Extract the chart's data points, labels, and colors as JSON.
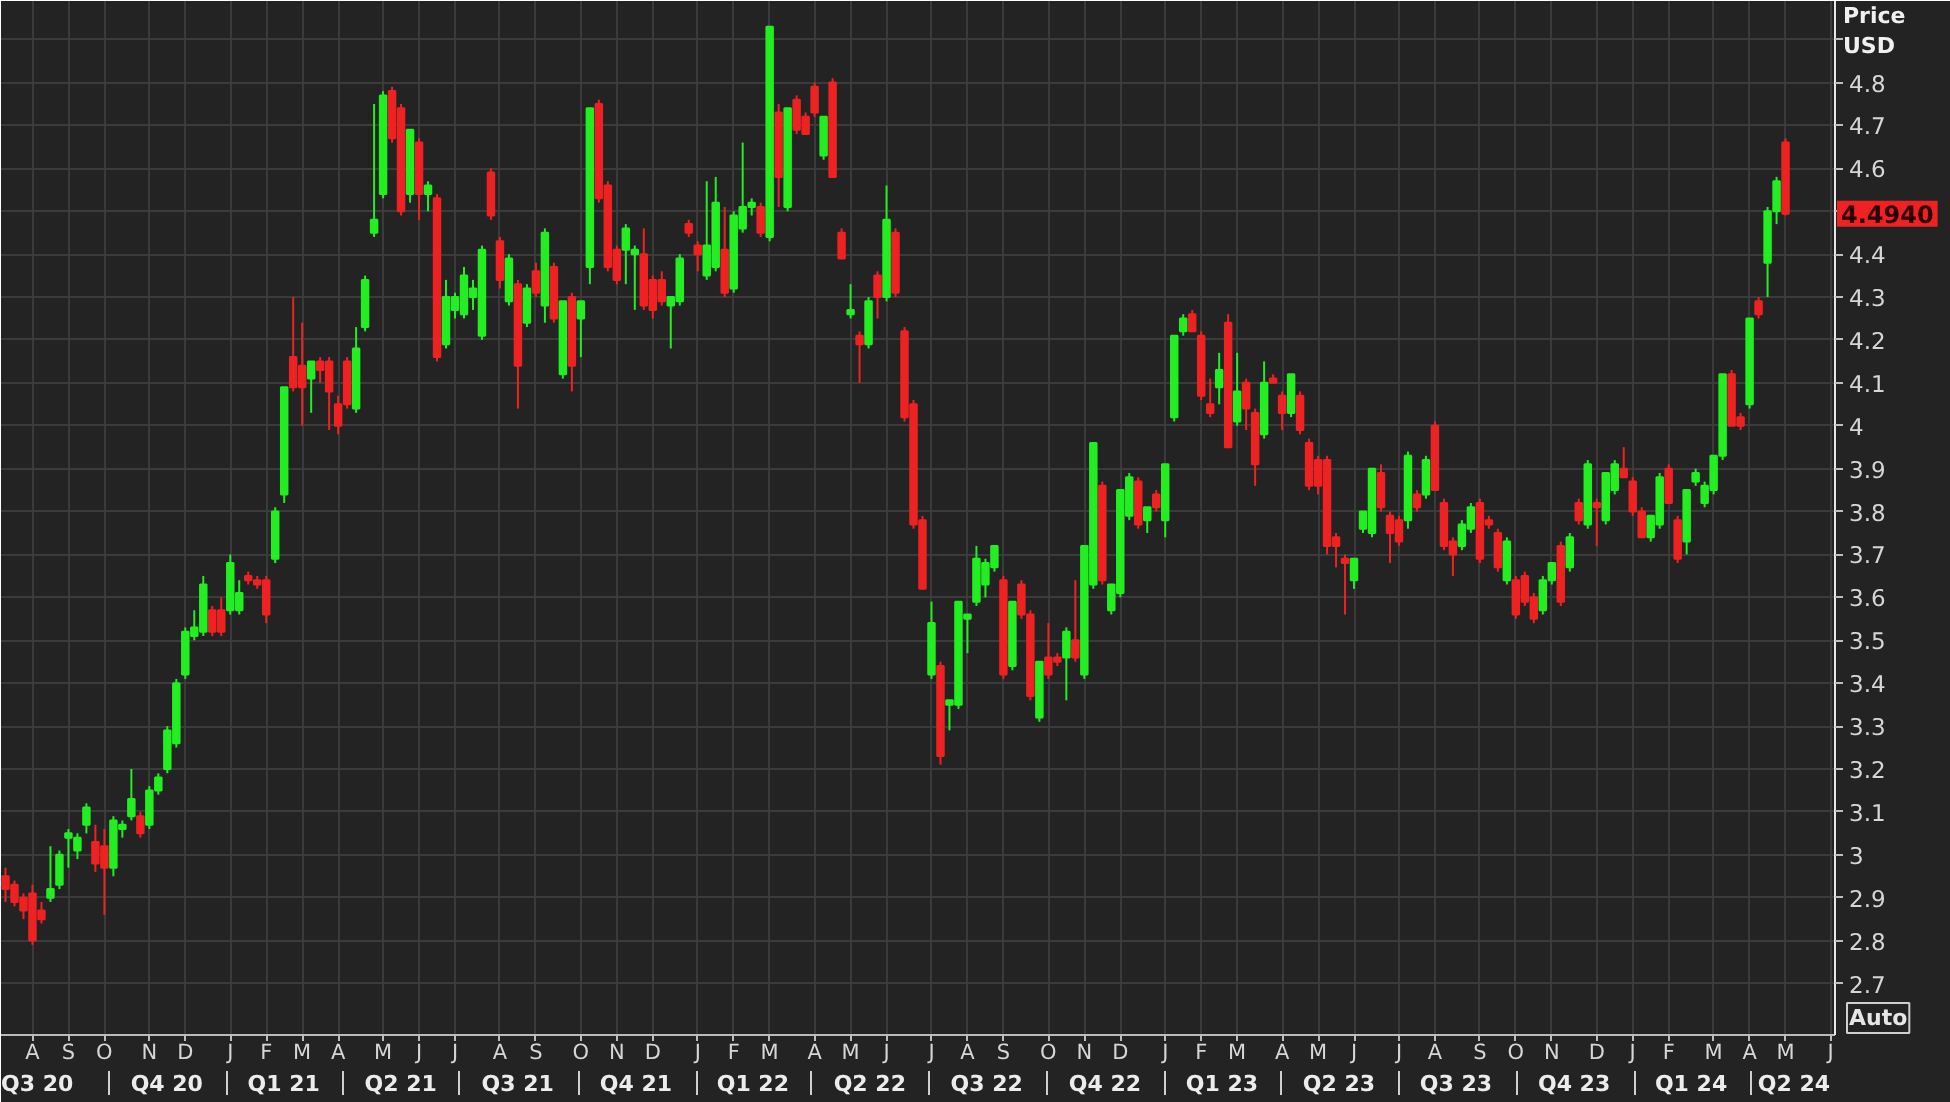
{
  "chart_data": {
    "type": "candlestick",
    "ylabel": "Price USD",
    "categories": [
      null,
      null,
      null,
      "A",
      null,
      null,
      null,
      "S",
      null,
      null,
      null,
      "O",
      null,
      null,
      null,
      null,
      "N",
      null,
      null,
      null,
      "D",
      null,
      null,
      null,
      null,
      "J",
      null,
      null,
      null,
      "F",
      null,
      null,
      null,
      "M",
      null,
      null,
      null,
      "A",
      null,
      null,
      null,
      null,
      "M",
      null,
      null,
      null,
      "J",
      null,
      null,
      null,
      "J",
      null,
      null,
      null,
      null,
      "A",
      null,
      null,
      null,
      "S",
      null,
      null,
      null,
      null,
      "O",
      null,
      null,
      null,
      "N",
      null,
      null,
      null,
      "D",
      null,
      null,
      null,
      null,
      "J",
      null,
      null,
      null,
      "F",
      null,
      null,
      null,
      "M",
      null,
      null,
      null,
      null,
      "A",
      null,
      null,
      null,
      "M",
      null,
      null,
      null,
      "J",
      null,
      null,
      null,
      null,
      "J",
      null,
      null,
      null,
      "A",
      null,
      null,
      null,
      "S",
      null,
      null,
      null,
      null,
      "O",
      null,
      null,
      null,
      "N",
      null,
      null,
      null,
      "D",
      null,
      null,
      null,
      null,
      "J",
      null,
      null,
      null,
      "F",
      null,
      null,
      null,
      "M",
      null,
      null,
      null,
      null,
      "A",
      null,
      null,
      null,
      "M",
      null,
      null,
      null,
      "J",
      null,
      null,
      null,
      null,
      "J",
      null,
      null,
      null,
      "A",
      null,
      null,
      null,
      null,
      "S",
      null,
      null,
      null,
      "O",
      null,
      null,
      null,
      "N",
      null,
      null,
      null,
      null,
      "D",
      null,
      null,
      null,
      "J",
      null,
      null,
      null,
      "F",
      null,
      null,
      null,
      null,
      "M",
      null,
      null,
      null,
      "A",
      null,
      null,
      null,
      "M",
      null,
      null,
      null,
      null,
      "J"
    ],
    "ohlc": [
      [
        2.95,
        2.97,
        2.89,
        2.92
      ],
      [
        2.93,
        2.94,
        2.88,
        2.89
      ],
      [
        2.9,
        2.91,
        2.85,
        2.87
      ],
      [
        2.91,
        2.93,
        2.79,
        2.8
      ],
      [
        2.87,
        2.89,
        2.84,
        2.85
      ],
      [
        2.9,
        3.02,
        2.89,
        2.92
      ],
      [
        2.93,
        3.01,
        2.92,
        3.0
      ],
      [
        3.04,
        3.06,
        2.97,
        3.05
      ],
      [
        3.01,
        3.05,
        2.99,
        3.04
      ],
      [
        3.07,
        3.12,
        3.05,
        3.11
      ],
      [
        3.03,
        3.07,
        2.96,
        2.98
      ],
      [
        3.02,
        3.06,
        2.86,
        2.97
      ],
      [
        2.97,
        3.09,
        2.95,
        3.08
      ],
      [
        3.06,
        3.08,
        3.04,
        3.07
      ],
      [
        3.09,
        3.2,
        3.08,
        3.13
      ],
      [
        3.09,
        3.1,
        3.04,
        3.05
      ],
      [
        3.07,
        3.16,
        3.06,
        3.15
      ],
      [
        3.15,
        3.19,
        3.14,
        3.18
      ],
      [
        3.2,
        3.3,
        3.19,
        3.29
      ],
      [
        3.26,
        3.41,
        3.25,
        3.4
      ],
      [
        3.42,
        3.53,
        3.41,
        3.52
      ],
      [
        3.51,
        3.57,
        3.5,
        3.53
      ],
      [
        3.52,
        3.65,
        3.51,
        3.63
      ],
      [
        3.57,
        3.58,
        3.51,
        3.52
      ],
      [
        3.57,
        3.6,
        3.51,
        3.52
      ],
      [
        3.57,
        3.7,
        3.56,
        3.68
      ],
      [
        3.57,
        3.64,
        3.56,
        3.61
      ],
      [
        3.65,
        3.66,
        3.63,
        3.64
      ],
      [
        3.64,
        3.65,
        3.62,
        3.63
      ],
      [
        3.64,
        3.65,
        3.54,
        3.56
      ],
      [
        3.69,
        3.81,
        3.68,
        3.8
      ],
      [
        3.84,
        4.09,
        3.82,
        4.09
      ],
      [
        4.16,
        4.3,
        4.08,
        4.09
      ],
      [
        4.14,
        4.24,
        4.0,
        4.09
      ],
      [
        4.11,
        4.15,
        4.03,
        4.15
      ],
      [
        4.15,
        4.16,
        4.1,
        4.13
      ],
      [
        4.15,
        4.16,
        3.99,
        4.08
      ],
      [
        4.05,
        4.07,
        3.98,
        4.0
      ],
      [
        4.15,
        4.16,
        4.04,
        4.05
      ],
      [
        4.04,
        4.23,
        4.03,
        4.18
      ],
      [
        4.23,
        4.35,
        4.22,
        4.34
      ],
      [
        4.45,
        4.75,
        4.44,
        4.48
      ],
      [
        4.54,
        4.78,
        4.53,
        4.77
      ],
      [
        4.78,
        4.79,
        4.66,
        4.67
      ],
      [
        4.74,
        4.75,
        4.49,
        4.5
      ],
      [
        4.54,
        4.69,
        4.52,
        4.69
      ],
      [
        4.66,
        4.67,
        4.48,
        4.54
      ],
      [
        4.54,
        4.57,
        4.5,
        4.56
      ],
      [
        4.53,
        4.54,
        4.15,
        4.16
      ],
      [
        4.19,
        4.34,
        4.18,
        4.3
      ],
      [
        4.27,
        4.31,
        4.25,
        4.3
      ],
      [
        4.26,
        4.37,
        4.25,
        4.35
      ],
      [
        4.3,
        4.34,
        4.27,
        4.32
      ],
      [
        4.21,
        4.42,
        4.2,
        4.41
      ],
      [
        4.59,
        4.6,
        4.48,
        4.49
      ],
      [
        4.43,
        4.44,
        4.32,
        4.34
      ],
      [
        4.29,
        4.4,
        4.28,
        4.39
      ],
      [
        4.33,
        4.34,
        4.04,
        4.14
      ],
      [
        4.24,
        4.33,
        4.23,
        4.32
      ],
      [
        4.36,
        4.38,
        4.3,
        4.31
      ],
      [
        4.28,
        4.46,
        4.24,
        4.45
      ],
      [
        4.37,
        4.38,
        4.24,
        4.25
      ],
      [
        4.12,
        4.29,
        4.11,
        4.29
      ],
      [
        4.3,
        4.31,
        4.08,
        4.14
      ],
      [
        4.25,
        4.29,
        4.16,
        4.29
      ],
      [
        4.37,
        4.74,
        4.33,
        4.74
      ],
      [
        4.75,
        4.76,
        4.52,
        4.53
      ],
      [
        4.56,
        4.57,
        4.36,
        4.37
      ],
      [
        4.41,
        4.42,
        4.33,
        4.34
      ],
      [
        4.41,
        4.47,
        4.33,
        4.46
      ],
      [
        4.4,
        4.42,
        4.27,
        4.41
      ],
      [
        4.4,
        4.46,
        4.27,
        4.28
      ],
      [
        4.34,
        4.35,
        4.25,
        4.27
      ],
      [
        4.34,
        4.36,
        4.28,
        4.29
      ],
      [
        4.28,
        4.3,
        4.18,
        4.3
      ],
      [
        4.29,
        4.4,
        4.28,
        4.39
      ],
      [
        4.47,
        4.48,
        4.44,
        4.45
      ],
      [
        4.42,
        4.43,
        4.36,
        4.4
      ],
      [
        4.35,
        4.57,
        4.34,
        4.42
      ],
      [
        4.37,
        4.58,
        4.36,
        4.52
      ],
      [
        4.41,
        4.51,
        4.3,
        4.31
      ],
      [
        4.32,
        4.5,
        4.31,
        4.49
      ],
      [
        4.46,
        4.66,
        4.45,
        4.51
      ],
      [
        4.51,
        4.53,
        4.49,
        4.52
      ],
      [
        4.51,
        4.52,
        4.44,
        4.45
      ],
      [
        4.44,
        4.93,
        4.43,
        4.93
      ],
      [
        4.73,
        4.75,
        4.51,
        4.58
      ],
      [
        4.51,
        4.74,
        4.5,
        4.74
      ],
      [
        4.76,
        4.77,
        4.68,
        4.69
      ],
      [
        4.72,
        4.73,
        4.68,
        4.68
      ],
      [
        4.79,
        4.8,
        4.72,
        4.73
      ],
      [
        4.63,
        4.72,
        4.62,
        4.72
      ],
      [
        4.8,
        4.81,
        4.58,
        4.58
      ],
      [
        4.45,
        4.46,
        4.39,
        4.39
      ],
      [
        4.26,
        4.33,
        4.25,
        4.27
      ],
      [
        4.21,
        4.22,
        4.1,
        4.19
      ],
      [
        4.19,
        4.3,
        4.18,
        4.29
      ],
      [
        4.35,
        4.36,
        4.25,
        4.3
      ],
      [
        4.3,
        4.56,
        4.29,
        4.48
      ],
      [
        4.45,
        4.46,
        4.3,
        4.31
      ],
      [
        4.22,
        4.23,
        4.01,
        4.02
      ],
      [
        4.05,
        4.06,
        3.76,
        3.77
      ],
      [
        3.78,
        3.79,
        3.62,
        3.62
      ],
      [
        3.42,
        3.59,
        3.41,
        3.54
      ],
      [
        3.44,
        3.45,
        3.21,
        3.23
      ],
      [
        3.35,
        3.36,
        3.29,
        3.36
      ],
      [
        3.35,
        3.59,
        3.34,
        3.59
      ],
      [
        3.55,
        3.56,
        3.47,
        3.56
      ],
      [
        3.59,
        3.72,
        3.58,
        3.69
      ],
      [
        3.63,
        3.69,
        3.6,
        3.68
      ],
      [
        3.67,
        3.72,
        3.66,
        3.72
      ],
      [
        3.64,
        3.65,
        3.41,
        3.42
      ],
      [
        3.44,
        3.59,
        3.43,
        3.59
      ],
      [
        3.63,
        3.64,
        3.55,
        3.56
      ],
      [
        3.56,
        3.57,
        3.36,
        3.37
      ],
      [
        3.32,
        3.45,
        3.31,
        3.45
      ],
      [
        3.46,
        3.54,
        3.41,
        3.42
      ],
      [
        3.46,
        3.47,
        3.44,
        3.45
      ],
      [
        3.46,
        3.53,
        3.36,
        3.52
      ],
      [
        3.5,
        3.64,
        3.45,
        3.46
      ],
      [
        3.42,
        3.72,
        3.41,
        3.72
      ],
      [
        3.63,
        3.96,
        3.62,
        3.96
      ],
      [
        3.86,
        3.87,
        3.63,
        3.64
      ],
      [
        3.57,
        3.63,
        3.56,
        3.63
      ],
      [
        3.61,
        3.85,
        3.6,
        3.85
      ],
      [
        3.79,
        3.89,
        3.78,
        3.88
      ],
      [
        3.87,
        3.88,
        3.76,
        3.77
      ],
      [
        3.78,
        3.81,
        3.75,
        3.81
      ],
      [
        3.84,
        3.85,
        3.8,
        3.81
      ],
      [
        3.78,
        3.91,
        3.74,
        3.91
      ],
      [
        4.02,
        4.21,
        4.01,
        4.21
      ],
      [
        4.22,
        4.26,
        4.21,
        4.25
      ],
      [
        4.26,
        4.27,
        4.22,
        4.22
      ],
      [
        4.21,
        4.22,
        4.06,
        4.07
      ],
      [
        4.05,
        4.11,
        4.02,
        4.03
      ],
      [
        4.09,
        4.17,
        4.05,
        4.13
      ],
      [
        4.24,
        4.26,
        3.95,
        3.95
      ],
      [
        4.01,
        4.17,
        4.0,
        4.08
      ],
      [
        4.1,
        4.11,
        3.99,
        4.04
      ],
      [
        4.03,
        4.04,
        3.86,
        3.91
      ],
      [
        3.98,
        4.15,
        3.97,
        4.1
      ],
      [
        4.11,
        4.12,
        4.1,
        4.1
      ],
      [
        4.07,
        4.08,
        3.99,
        4.03
      ],
      [
        4.03,
        4.12,
        4.02,
        4.12
      ],
      [
        4.07,
        4.08,
        3.98,
        3.99
      ],
      [
        3.96,
        3.97,
        3.85,
        3.86
      ],
      [
        3.92,
        3.93,
        3.84,
        3.86
      ],
      [
        3.92,
        3.93,
        3.7,
        3.72
      ],
      [
        3.74,
        3.75,
        3.67,
        3.72
      ],
      [
        3.69,
        3.7,
        3.56,
        3.68
      ],
      [
        3.64,
        3.69,
        3.62,
        3.69
      ],
      [
        3.76,
        3.8,
        3.75,
        3.8
      ],
      [
        3.75,
        3.9,
        3.74,
        3.9
      ],
      [
        3.89,
        3.91,
        3.8,
        3.81
      ],
      [
        3.79,
        3.8,
        3.68,
        3.75
      ],
      [
        3.78,
        3.79,
        3.72,
        3.73
      ],
      [
        3.78,
        3.94,
        3.76,
        3.93
      ],
      [
        3.84,
        3.85,
        3.8,
        3.81
      ],
      [
        3.84,
        3.93,
        3.83,
        3.92
      ],
      [
        4.0,
        4.01,
        3.85,
        3.85
      ],
      [
        3.82,
        3.83,
        3.71,
        3.72
      ],
      [
        3.73,
        3.74,
        3.65,
        3.7
      ],
      [
        3.72,
        3.78,
        3.71,
        3.77
      ],
      [
        3.76,
        3.82,
        3.75,
        3.81
      ],
      [
        3.82,
        3.83,
        3.68,
        3.69
      ],
      [
        3.78,
        3.79,
        3.76,
        3.77
      ],
      [
        3.75,
        3.76,
        3.66,
        3.67
      ],
      [
        3.64,
        3.74,
        3.63,
        3.73
      ],
      [
        3.64,
        3.65,
        3.55,
        3.56
      ],
      [
        3.65,
        3.66,
        3.58,
        3.59
      ],
      [
        3.6,
        3.61,
        3.54,
        3.55
      ],
      [
        3.57,
        3.65,
        3.56,
        3.64
      ],
      [
        3.64,
        3.68,
        3.63,
        3.68
      ],
      [
        3.72,
        3.73,
        3.58,
        3.59
      ],
      [
        3.67,
        3.75,
        3.66,
        3.74
      ],
      [
        3.82,
        3.83,
        3.77,
        3.78
      ],
      [
        3.77,
        3.92,
        3.76,
        3.91
      ],
      [
        3.82,
        3.83,
        3.72,
        3.81
      ],
      [
        3.78,
        3.89,
        3.77,
        3.89
      ],
      [
        3.85,
        3.92,
        3.84,
        3.91
      ],
      [
        3.9,
        3.95,
        3.88,
        3.88
      ],
      [
        3.87,
        3.88,
        3.79,
        3.8
      ],
      [
        3.8,
        3.81,
        3.74,
        3.74
      ],
      [
        3.74,
        3.79,
        3.73,
        3.79
      ],
      [
        3.77,
        3.89,
        3.76,
        3.88
      ],
      [
        3.9,
        3.91,
        3.82,
        3.82
      ],
      [
        3.78,
        3.79,
        3.68,
        3.69
      ],
      [
        3.73,
        3.85,
        3.7,
        3.85
      ],
      [
        3.87,
        3.9,
        3.86,
        3.89
      ],
      [
        3.82,
        3.87,
        3.81,
        3.86
      ],
      [
        3.85,
        3.93,
        3.84,
        3.93
      ],
      [
        3.93,
        4.12,
        3.92,
        4.12
      ],
      [
        4.12,
        4.13,
        4.0,
        4.0
      ],
      [
        4.02,
        4.03,
        3.99,
        4.0
      ],
      [
        4.05,
        4.25,
        4.04,
        4.25
      ],
      [
        4.29,
        4.3,
        4.25,
        4.26
      ],
      [
        4.38,
        4.51,
        4.3,
        4.5
      ],
      [
        4.5,
        4.58,
        4.47,
        4.57
      ],
      [
        4.66,
        4.67,
        4.49,
        4.494
      ],
      null,
      null,
      null,
      null,
      null
    ],
    "colors": [
      "#ee2222",
      "#ee2222",
      "#ee2222",
      "#ee2222",
      "#ee2222",
      "#22ee22",
      "#22ee22",
      "#22ee22",
      "#22ee22",
      "#22ee22",
      "#ee2222",
      "#ee2222",
      "#22ee22",
      "#22ee22",
      "#22ee22",
      "#ee2222",
      "#22ee22",
      "#22ee22",
      "#22ee22",
      "#22ee22",
      "#22ee22",
      "#22ee22",
      "#22ee22",
      "#ee2222",
      "#ee2222",
      "#22ee22",
      "#22ee22",
      "#ee2222",
      "#ee2222",
      "#ee2222",
      "#22ee22",
      "#22ee22",
      "#ee2222",
      "#ee2222",
      "#22ee22",
      "#ee2222",
      "#ee2222",
      "#ee2222",
      "#ee2222",
      "#22ee22",
      "#22ee22",
      "#22ee22",
      "#22ee22",
      "#ee2222",
      "#ee2222",
      "#22ee22",
      "#ee2222",
      "#22ee22",
      "#ee2222",
      "#22ee22",
      "#22ee22",
      "#22ee22",
      "#22ee22",
      "#22ee22",
      "#ee2222",
      "#ee2222",
      "#22ee22",
      "#ee2222",
      "#22ee22",
      "#ee2222",
      "#22ee22",
      "#ee2222",
      "#22ee22",
      "#ee2222",
      "#22ee22",
      "#22ee22",
      "#ee2222",
      "#ee2222",
      "#ee2222",
      "#22ee22",
      "#22ee22",
      "#ee2222",
      "#ee2222",
      "#ee2222",
      "#22ee22",
      "#22ee22",
      "#ee2222",
      "#ee2222",
      "#22ee22",
      "#22ee22",
      "#ee2222",
      "#22ee22",
      "#22ee22",
      "#22ee22",
      "#ee2222",
      "#22ee22",
      "#ee2222",
      "#22ee22",
      "#ee2222",
      "#ee2222",
      "#ee2222",
      "#22ee22",
      "#ee2222",
      "#ee2222",
      "#22ee22",
      "#ee2222",
      "#22ee22",
      "#ee2222",
      "#22ee22",
      "#ee2222",
      "#ee2222",
      "#ee2222",
      "#ee2222",
      "#22ee22",
      "#ee2222",
      "#22ee22",
      "#22ee22",
      "#22ee22",
      "#22ee22",
      "#22ee22",
      "#22ee22",
      "#ee2222",
      "#22ee22",
      "#ee2222",
      "#ee2222",
      "#22ee22",
      "#ee2222",
      "#ee2222",
      "#22ee22",
      "#ee2222",
      "#22ee22",
      "#22ee22",
      "#ee2222",
      "#22ee22",
      "#22ee22",
      "#22ee22",
      "#ee2222",
      "#22ee22",
      "#ee2222",
      "#22ee22",
      "#22ee22",
      "#22ee22",
      "#ee2222",
      "#ee2222",
      "#ee2222",
      "#22ee22",
      "#ee2222",
      "#22ee22",
      "#ee2222",
      "#ee2222",
      "#22ee22",
      "#ee2222",
      "#ee2222",
      "#22ee22",
      "#ee2222",
      "#ee2222",
      "#ee2222",
      "#ee2222",
      "#ee2222",
      "#ee2222",
      "#22ee22",
      "#22ee22",
      "#22ee22",
      "#ee2222",
      "#ee2222",
      "#ee2222",
      "#22ee22",
      "#ee2222",
      "#22ee22",
      "#ee2222",
      "#ee2222",
      "#ee2222",
      "#22ee22",
      "#22ee22",
      "#ee2222",
      "#ee2222",
      "#ee2222",
      "#22ee22",
      "#ee2222",
      "#ee2222",
      "#ee2222",
      "#22ee22",
      "#22ee22",
      "#ee2222",
      "#22ee22",
      "#ee2222",
      "#22ee22",
      "#ee2222",
      "#22ee22",
      "#22ee22",
      "#ee2222",
      "#ee2222",
      "#ee2222",
      "#22ee22",
      "#22ee22",
      "#ee2222",
      "#ee2222",
      "#22ee22",
      "#22ee22",
      "#22ee22",
      "#22ee22",
      "#22ee22",
      "#ee2222",
      "#ee2222",
      "#22ee22",
      "#ee2222",
      "#22ee22",
      "#22ee22",
      "#ee2222",
      null,
      null,
      null,
      null,
      null
    ],
    "x2lim": [
      "2020-07-09",
      "2024-06-05"
    ],
    "x2ticks": [
      {
        "value": "2020-08-05",
        "label": "Q3 20"
      },
      {
        "value": "2020-10-01",
        "label": null
      },
      {
        "value": "2020-11-15",
        "label": "Q4 20"
      },
      {
        "value": "2021-01-01",
        "label": null
      },
      {
        "value": "2021-02-14",
        "label": "Q1 21"
      },
      {
        "value": "2021-04-01",
        "label": null
      },
      {
        "value": "2021-05-16",
        "label": "Q2 21"
      },
      {
        "value": "2021-07-01",
        "label": null
      },
      {
        "value": "2021-08-15",
        "label": "Q3 21"
      },
      {
        "value": "2021-10-01",
        "label": null
      },
      {
        "value": "2021-11-15",
        "label": "Q4 21"
      },
      {
        "value": "2022-01-01",
        "label": null
      },
      {
        "value": "2022-02-14",
        "label": "Q1 22"
      },
      {
        "value": "2022-04-01",
        "label": null
      },
      {
        "value": "2022-05-16",
        "label": "Q2 22"
      },
      {
        "value": "2022-07-01",
        "label": null
      },
      {
        "value": "2022-08-15",
        "label": "Q3 22"
      },
      {
        "value": "2022-10-01",
        "label": null
      },
      {
        "value": "2022-11-15",
        "label": "Q4 22"
      },
      {
        "value": "2023-01-01",
        "label": null
      },
      {
        "value": "2023-02-14",
        "label": "Q1 23"
      },
      {
        "value": "2023-04-01",
        "label": null
      },
      {
        "value": "2023-05-16",
        "label": "Q2 23"
      },
      {
        "value": "2023-07-01",
        "label": null
      },
      {
        "value": "2023-08-15",
        "label": "Q3 23"
      },
      {
        "value": "2023-10-01",
        "label": null
      },
      {
        "value": "2023-11-15",
        "label": "Q4 23"
      },
      {
        "value": "2024-01-01",
        "label": null
      },
      {
        "value": "2024-02-14",
        "label": "Q1 24"
      },
      {
        "value": "2024-04-01",
        "label": null
      },
      {
        "value": "2024-05-04",
        "label": "Q2 24"
      }
    ],
    "ylim": [
      2.58,
      4.99
    ],
    "yticks": [
      2.7,
      2.8,
      2.9,
      3,
      3.1,
      3.2,
      3.3,
      3.4,
      3.5,
      3.6,
      3.7,
      3.8,
      3.9,
      4,
      4.1,
      4.2,
      4.3,
      4.4,
      {
        "value": 4.5,
        "label": null
      },
      4.6,
      4.7,
      4.8,
      {
        "value": 4.9,
        "label": null
      }
    ],
    "grid": true,
    "annotations": [
      "4.4940",
      "Auto"
    ]
  }
}
